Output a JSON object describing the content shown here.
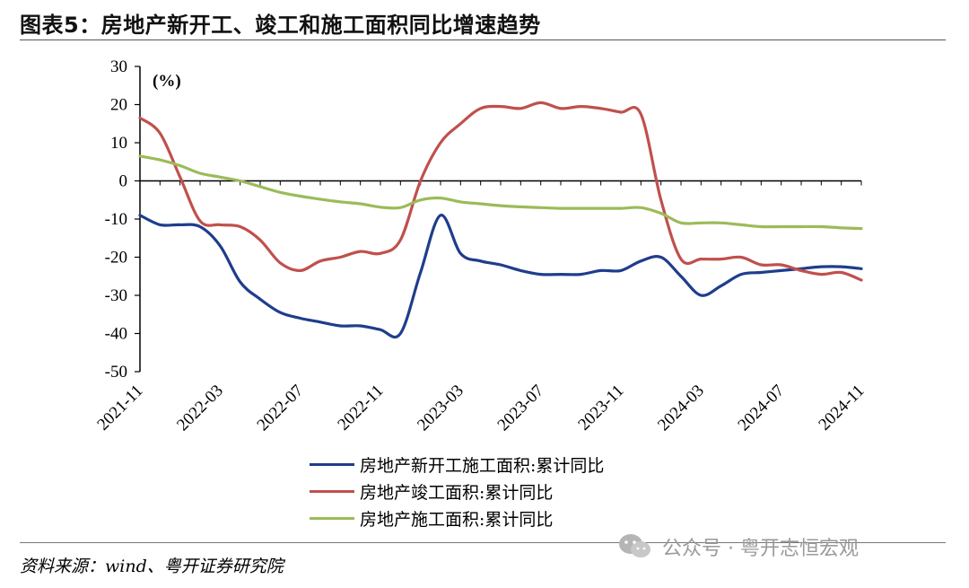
{
  "figure": {
    "title": "图表5：房地产新开工、竣工和施工面积同比增速趋势",
    "source": "资料来源：wind、粤开证券研究院",
    "watermark": "公众号 · 粤开志恒宏观"
  },
  "chart_data": {
    "type": "line",
    "unit_label": "(%)",
    "ylim": [
      -50,
      30
    ],
    "yticks": [
      30,
      20,
      10,
      0,
      -10,
      -20,
      -30,
      -40,
      -50
    ],
    "x_tick_labels": [
      "2021-11",
      "2022-03",
      "2022-07",
      "2022-11",
      "2023-03",
      "2023-07",
      "2023-11",
      "2024-03",
      "2024-07",
      "2024-11"
    ],
    "x": [
      "2021-11",
      "2021-12",
      "2022-01",
      "2022-02",
      "2022-03",
      "2022-04",
      "2022-05",
      "2022-06",
      "2022-07",
      "2022-08",
      "2022-09",
      "2022-10",
      "2022-11",
      "2022-12",
      "2023-01",
      "2023-02",
      "2023-03",
      "2023-04",
      "2023-05",
      "2023-06",
      "2023-07",
      "2023-08",
      "2023-09",
      "2023-10",
      "2023-11",
      "2023-12",
      "2024-01",
      "2024-02",
      "2024-03",
      "2024-04",
      "2024-05",
      "2024-06",
      "2024-07",
      "2024-08",
      "2024-09",
      "2024-10",
      "2024-11"
    ],
    "series": [
      {
        "name": "房地产新开工施工面积:累计同比",
        "color": "#1f3d8c",
        "values": [
          -9.0,
          -11.5,
          -11.5,
          -12.0,
          -17.0,
          -26.5,
          -31.0,
          -34.5,
          -36.0,
          -37.0,
          -38.0,
          -38.0,
          -39.0,
          -40.0,
          -24.0,
          -9.0,
          -19.0,
          -21.0,
          -22.0,
          -23.5,
          -24.5,
          -24.5,
          -24.5,
          -23.5,
          -23.5,
          -21.0,
          -20.0,
          -25.0,
          -30.0,
          -27.5,
          -24.5,
          -24.0,
          -23.5,
          -23.0,
          -22.5,
          -22.5,
          -23.0
        ]
      },
      {
        "name": "房地产竣工面积:累计同比",
        "color": "#c0504d",
        "values": [
          16.5,
          12.5,
          1.0,
          -10.5,
          -11.5,
          -12.0,
          -15.5,
          -21.5,
          -23.5,
          -21.0,
          -20.0,
          -18.5,
          -19.0,
          -15.5,
          0.0,
          10.0,
          15.0,
          19.0,
          19.5,
          19.0,
          20.5,
          19.0,
          19.5,
          19.0,
          18.0,
          17.5,
          -5.0,
          -20.5,
          -20.5,
          -20.5,
          -20.0,
          -22.0,
          -22.0,
          -23.5,
          -24.5,
          -24.0,
          -26.0
        ]
      },
      {
        "name": "房地产施工面积:累计同比",
        "color": "#9bbb59",
        "values": [
          6.5,
          5.5,
          4.0,
          2.0,
          1.0,
          0.0,
          -1.5,
          -3.0,
          -4.0,
          -4.8,
          -5.5,
          -6.0,
          -6.9,
          -7.0,
          -5.0,
          -4.5,
          -5.5,
          -6.0,
          -6.5,
          -6.8,
          -7.0,
          -7.2,
          -7.2,
          -7.2,
          -7.2,
          -7.0,
          -8.5,
          -11.0,
          -11.0,
          -11.0,
          -11.5,
          -12.0,
          -12.0,
          -12.0,
          -12.0,
          -12.3,
          -12.5
        ]
      }
    ],
    "grid": false
  }
}
